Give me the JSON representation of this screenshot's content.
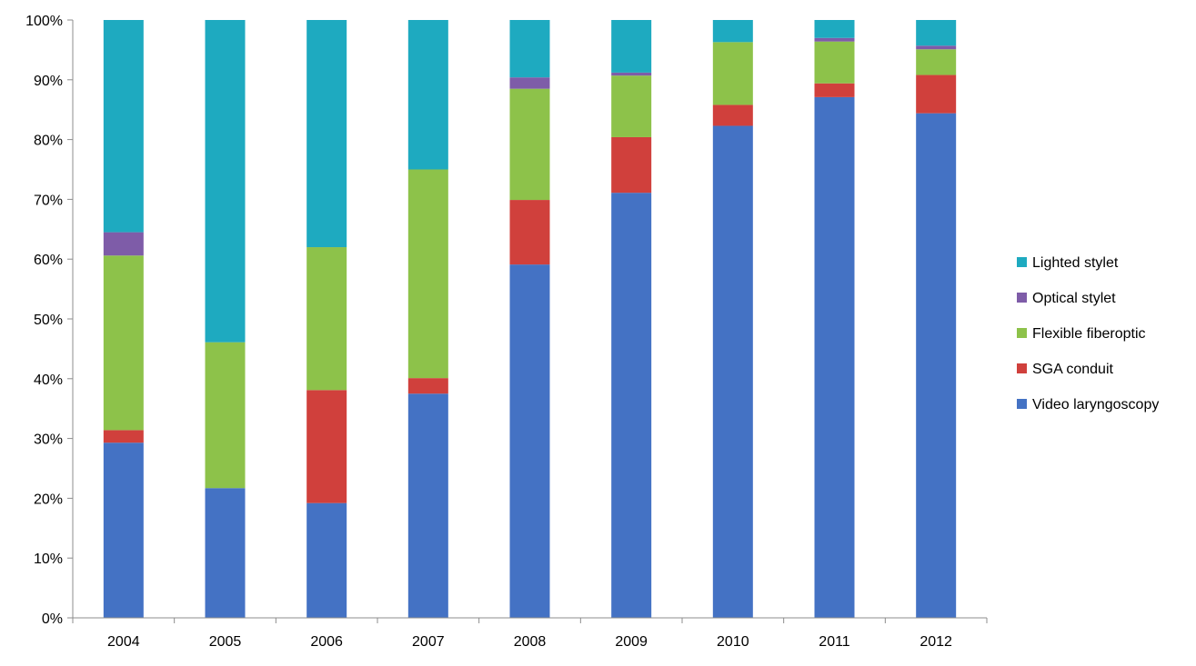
{
  "chart_data": {
    "type": "bar",
    "stacked": true,
    "percent_stacked": true,
    "categories": [
      "2004",
      "2005",
      "2006",
      "2007",
      "2008",
      "2009",
      "2010",
      "2011",
      "2012"
    ],
    "series": [
      {
        "name": "Video laryngoscopy",
        "color": "#4472C4",
        "values": [
          29.3,
          21.7,
          19.2,
          37.5,
          59.1,
          71.1,
          82.3,
          87.1,
          84.4
        ]
      },
      {
        "name": "SGA conduit",
        "color": "#D0403C",
        "values": [
          2.1,
          0.0,
          18.9,
          2.6,
          10.8,
          9.3,
          3.5,
          2.3,
          6.4
        ]
      },
      {
        "name": "Flexible fiberoptic",
        "color": "#8DC24A",
        "values": [
          29.2,
          24.4,
          23.9,
          34.9,
          18.6,
          10.3,
          10.5,
          7.0,
          4.3
        ]
      },
      {
        "name": "Optical stylet",
        "color": "#7E5CA8",
        "values": [
          3.9,
          0.0,
          0.0,
          0.0,
          1.9,
          0.5,
          0.0,
          0.6,
          0.6
        ]
      },
      {
        "name": "Lighted stylet",
        "color": "#1EAAC0",
        "values": [
          35.5,
          53.9,
          38.0,
          25.0,
          9.6,
          8.8,
          3.7,
          3.0,
          4.3
        ]
      }
    ],
    "y_ticks": [
      "0%",
      "10%",
      "20%",
      "30%",
      "40%",
      "50%",
      "60%",
      "70%",
      "80%",
      "90%",
      "100%"
    ],
    "ylim": [
      0,
      100
    ],
    "grid": false,
    "legend_position": "right",
    "legend_order": [
      "Lighted stylet",
      "Optical stylet",
      "Flexible fiberoptic",
      "SGA conduit",
      "Video laryngoscopy"
    ]
  }
}
